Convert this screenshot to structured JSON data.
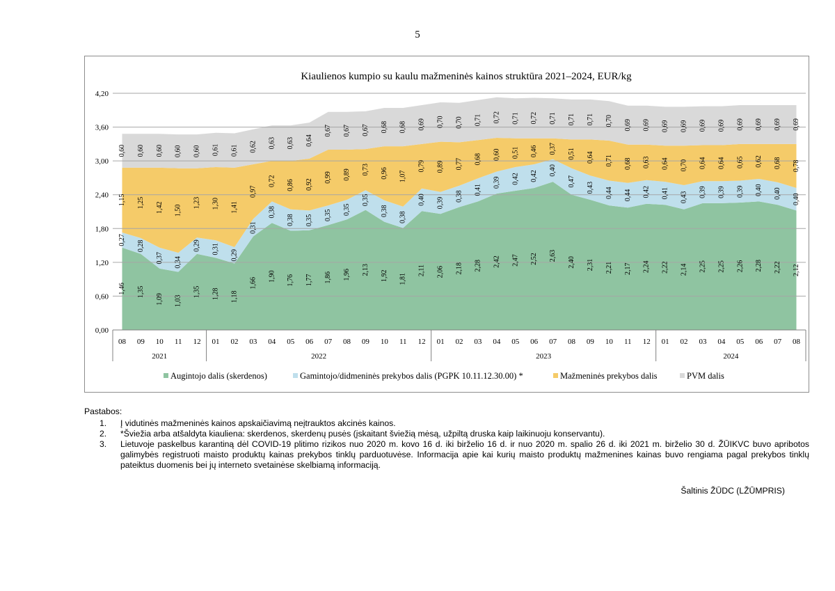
{
  "page_number": "5",
  "chart_data": {
    "type": "area",
    "title": "Kiaulienos kumpio su kaulu mažmeninės kainos struktūra 2021–2024, EUR/kg",
    "xlabel": "",
    "ylabel": "",
    "ylim": [
      0,
      4.2
    ],
    "yticks": [
      "0,00",
      "0,60",
      "1,20",
      "1,80",
      "2,40",
      "3,00",
      "3,60",
      "4,20"
    ],
    "stacked": true,
    "grid": true,
    "legend_position": "bottom",
    "categories": [
      "08",
      "09",
      "10",
      "11",
      "12",
      "01",
      "02",
      "03",
      "04",
      "05",
      "06",
      "07",
      "08",
      "09",
      "10",
      "11",
      "12",
      "01",
      "02",
      "03",
      "04",
      "05",
      "06",
      "07",
      "08",
      "09",
      "10",
      "11",
      "12",
      "01",
      "02",
      "03",
      "04",
      "05",
      "06",
      "07",
      "08"
    ],
    "years": [
      {
        "label": "2021",
        "count": 5
      },
      {
        "label": "2022",
        "count": 12
      },
      {
        "label": "2023",
        "count": 12
      },
      {
        "label": "2024",
        "count": 8
      }
    ],
    "series": [
      {
        "name": "Augintojo dalis (skerdenos)",
        "color": "#8fc4a1",
        "values": [
          1.46,
          1.35,
          1.09,
          1.03,
          1.35,
          1.28,
          1.18,
          1.66,
          1.9,
          1.76,
          1.77,
          1.86,
          1.96,
          2.13,
          1.92,
          1.81,
          2.11,
          2.06,
          2.18,
          2.28,
          2.42,
          2.47,
          2.52,
          2.63,
          2.4,
          2.31,
          2.21,
          2.17,
          2.24,
          2.22,
          2.14,
          2.25,
          2.25,
          2.26,
          2.28,
          2.22,
          2.12
        ],
        "labels": [
          "1,46",
          "1,35",
          "1,09",
          "1,03",
          "1,35",
          "1,28",
          "1,18",
          "1,66",
          "1,90",
          "1,76",
          "1,77",
          "1,86",
          "1,96",
          "2,13",
          "1,92",
          "1,81",
          "2,11",
          "2,06",
          "2,18",
          "2,28",
          "2,42",
          "2,47",
          "2,52",
          "2,63",
          "2,40",
          "2,31",
          "2,21",
          "2,17",
          "2,24",
          "2,22",
          "2,14",
          "2,25",
          "2,25",
          "2,26",
          "2,28",
          "2,22",
          "2,12"
        ]
      },
      {
        "name": "Gamintojo/didmeninės prekybos dalis (PGPK 10.11.12.30.00) *",
        "color": "#bfdfec",
        "values": [
          0.27,
          0.28,
          0.37,
          0.34,
          0.29,
          0.31,
          0.29,
          0.31,
          0.38,
          0.38,
          0.35,
          0.35,
          0.35,
          0.35,
          0.38,
          0.38,
          0.4,
          0.39,
          0.38,
          0.41,
          0.39,
          0.42,
          0.42,
          0.4,
          0.47,
          0.43,
          0.44,
          0.44,
          0.42,
          0.41,
          0.43,
          0.39,
          0.39,
          0.39,
          0.4,
          0.4,
          0.4
        ],
        "labels": [
          "0,27",
          "0,28",
          "0,37",
          "0,34",
          "0,29",
          "0,31",
          "0,29",
          "0,31",
          "0,38",
          "0,38",
          "0,35",
          "0,35",
          "0,35",
          "0,35",
          "0,38",
          "0,38",
          "0,40",
          "0,39",
          "0,38",
          "0,41",
          "0,39",
          "0,42",
          "0,42",
          "0,40",
          "0,47",
          "0,43",
          "0,44",
          "0,44",
          "0,42",
          "0,41",
          "0,43",
          "0,39",
          "0,39",
          "0,39",
          "0,40",
          "0,40",
          "0,40"
        ]
      },
      {
        "name": "Mažmeninės prekybos dalis",
        "color": "#f5cb69",
        "values": [
          1.15,
          1.25,
          1.42,
          1.5,
          1.23,
          1.3,
          1.41,
          0.97,
          0.72,
          0.86,
          0.92,
          0.99,
          0.89,
          0.73,
          0.96,
          1.07,
          0.79,
          0.89,
          0.77,
          0.68,
          0.6,
          0.51,
          0.46,
          0.37,
          0.51,
          0.64,
          0.71,
          0.68,
          0.63,
          0.64,
          0.7,
          0.64,
          0.64,
          0.65,
          0.62,
          0.68,
          0.78
        ],
        "labels": [
          "1,15",
          "1,25",
          "1,42",
          "1,50",
          "1,23",
          "1,30",
          "1,41",
          "0,97",
          "0,72",
          "0,86",
          "0,92",
          "0,99",
          "0,89",
          "0,73",
          "0,96",
          "1,07",
          "0,79",
          "0,89",
          "0,77",
          "0,68",
          "0,60",
          "0,51",
          "0,46",
          "0,37",
          "0,51",
          "0,64",
          "0,71",
          "0,68",
          "0,63",
          "0,64",
          "0,70",
          "0,64",
          "0,64",
          "0,65",
          "0,62",
          "0,68",
          "0,78"
        ]
      },
      {
        "name": "PVM dalis",
        "color": "#d9d9d9",
        "values": [
          0.6,
          0.6,
          0.6,
          0.6,
          0.6,
          0.61,
          0.61,
          0.62,
          0.63,
          0.63,
          0.64,
          0.67,
          0.67,
          0.67,
          0.68,
          0.68,
          0.69,
          0.7,
          0.7,
          0.71,
          0.72,
          0.71,
          0.72,
          0.71,
          0.71,
          0.71,
          0.7,
          0.69,
          0.69,
          0.69,
          0.69,
          0.69,
          0.69,
          0.69,
          0.69,
          0.69,
          0.69
        ],
        "labels": [
          "0,60",
          "0,60",
          "0,60",
          "0,60",
          "0,60",
          "0,61",
          "0,61",
          "0,62",
          "0,63",
          "0,63",
          "0,64",
          "0,67",
          "0,67",
          "0,67",
          "0,68",
          "0,68",
          "0,69",
          "0,70",
          "0,70",
          "0,71",
          "0,72",
          "0,71",
          "0,72",
          "0,71",
          "0,71",
          "0,71",
          "0,70",
          "0,69",
          "0,69",
          "0,69",
          "0,69",
          "0,69",
          "0,69",
          "0,69",
          "0,69",
          "0,69",
          "0,69"
        ]
      }
    ]
  },
  "notes": {
    "title": "Pastabos:",
    "items": [
      {
        "num": "1.",
        "text": "Į vidutinės mažmeninės kainos apskaičiavimą neįtrauktos akcinės kainos."
      },
      {
        "num": "2.",
        "text": "*Šviežia arba atšaldyta kiauliena: skerdenos, skerdenų pusės (įskaitant šviežią mėsą, užpiltą druska kaip laikinuoju konservantu)."
      },
      {
        "num": "3.",
        "text": "Lietuvoje paskelbus karantiną dėl COVID-19 plitimo rizikos nuo 2020 m. kovo 16 d. iki birželio 16 d. ir nuo 2020 m. spalio 26 d. iki 2021 m. birželio 30 d. ŽŪIKVC buvo apribotos galimybės registruoti maisto produktų kainas prekybos tinklų parduotuvėse. Informacija apie kai kurių maisto produktų mažmenines kainas buvo rengiama pagal prekybos tinklų pateiktus duomenis bei jų interneto svetainėse skelbiamą informaciją."
      }
    ]
  },
  "source": "Šaltinis ŽŪDC (LŽŪMPRIS)"
}
